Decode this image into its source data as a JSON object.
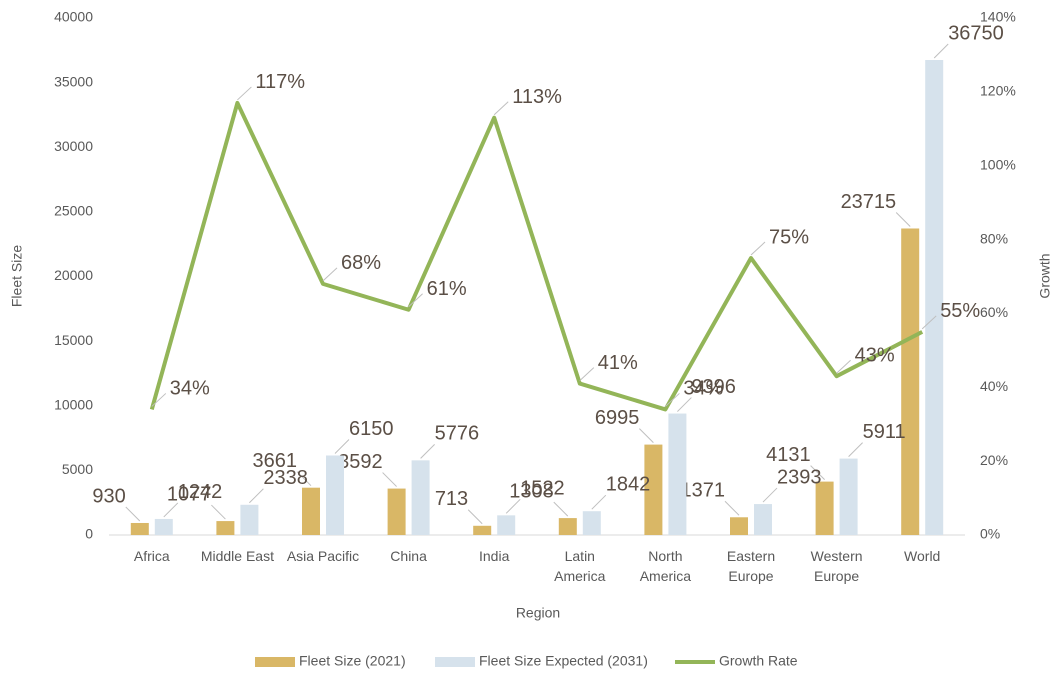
{
  "chart_data": {
    "type": "bar-line",
    "x_label": "Region",
    "y_label": "Fleet Size",
    "y2_label": "Growth",
    "categories": [
      "Africa",
      "Middle East",
      "Asia Pacific",
      "China",
      "India",
      "Latin\nAmerica",
      "North\nAmerica",
      "Eastern\nEurope",
      "Western\nEurope",
      "World"
    ],
    "series": [
      {
        "name": "Fleet Size (2021)",
        "type": "bar",
        "color": "#d9b766",
        "values": [
          930,
          1077,
          3661,
          3592,
          713,
          1308,
          6995,
          1371,
          4131,
          23715
        ]
      },
      {
        "name": "Fleet Size Expected (2031)",
        "type": "bar",
        "color": "#d6e2ec",
        "values": [
          1242,
          2338,
          6150,
          5776,
          1522,
          1842,
          9396,
          2393,
          5911,
          36750
        ]
      },
      {
        "name": "Growth Rate",
        "type": "line",
        "axis": "y2",
        "color": "#93b558",
        "values": [
          34,
          117,
          68,
          61,
          113,
          41,
          34,
          75,
          43,
          55
        ],
        "value_labels": [
          "34%",
          "117%",
          "68%",
          "61%",
          "113%",
          "41%",
          "34%",
          "75%",
          "43%",
          "55%"
        ]
      }
    ],
    "ylim": [
      0,
      40000
    ],
    "yticks": [
      0,
      5000,
      10000,
      15000,
      20000,
      25000,
      30000,
      35000,
      40000
    ],
    "y2lim": [
      0,
      140
    ],
    "y2ticks": [
      {
        "value": 0,
        "label": "0%"
      },
      {
        "value": 20,
        "label": "20%"
      },
      {
        "value": 40,
        "label": "40%"
      },
      {
        "value": 60,
        "label": "60%"
      },
      {
        "value": 80,
        "label": "80%"
      },
      {
        "value": 100,
        "label": "100%"
      },
      {
        "value": 120,
        "label": "120%"
      },
      {
        "value": 140,
        "label": "140%"
      }
    ],
    "legend": "bottom"
  }
}
